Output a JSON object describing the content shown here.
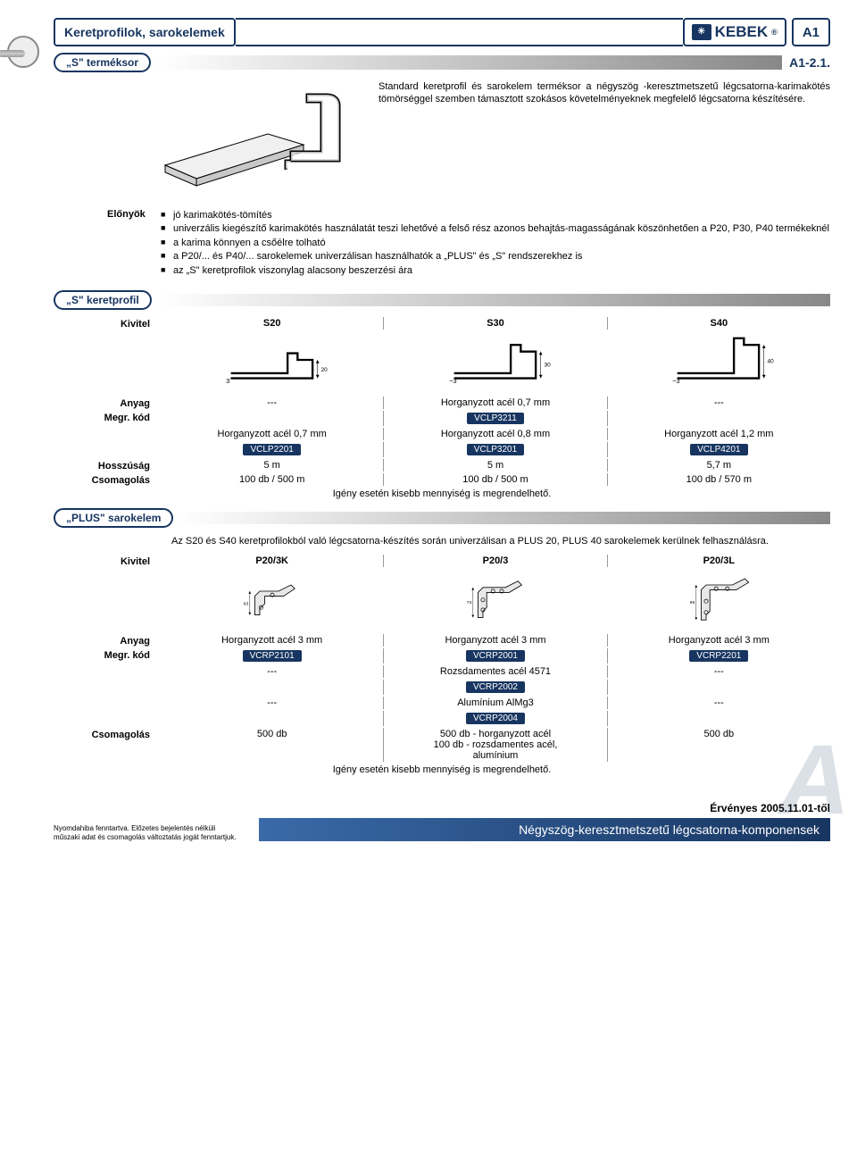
{
  "colors": {
    "brand": "#173560",
    "text": "#000000",
    "badge_bg": "#173560",
    "badge_text": "#ffffff",
    "grad_start": "#ffffff",
    "grad_end": "#888888",
    "footer_grad_start": "#3a6aa8",
    "footer_grad_end": "#173560"
  },
  "header": {
    "title": "Keretprofilok, sarokelemek",
    "logo_mark": "✳",
    "logo_text": "KEBEK",
    "page_code": "A1"
  },
  "sub": {
    "series_label": "„S\" terméksor",
    "series_code": "A1-2.1."
  },
  "intro_text": "Standard keretprofil és sarokelem terméksor a négyszög -keresztmetszetű légcsatorna-karimakötés tömörséggel szemben támasztott szokásos követelményeknek megfelelő légcsatorna készítésére.",
  "advantages": {
    "label": "Előnyök",
    "items": [
      "jó karimakötés-tömítés",
      "univerzális kiegészítő karimakötés használatát teszi lehetővé a felső rész azonos behajtás-magasságának köszönhetően a P20, P30, P40 termékeknél",
      "a karima könnyen a csőélre tolható",
      "a P20/... és P40/... sarokelemek univerzálisan használhatók a „PLUS\" és „S\" rendszerekhez is",
      "az „S\" keretprofilok viszonylag alacsony beszerzési ára"
    ]
  },
  "section_s": {
    "title": "„S\" keretprofil",
    "kivitel_label": "Kivitel",
    "variants": [
      "S20",
      "S30",
      "S40"
    ],
    "dimensions": {
      "h": [
        "20",
        "30",
        "40"
      ],
      "base": [
        "3˝",
        "~3˝",
        "~3˝"
      ]
    },
    "rows": [
      {
        "label": "Anyag",
        "cols": [
          "---",
          "Horganyzott acél 0,7 mm",
          "---"
        ]
      },
      {
        "label": "Megr. kód",
        "cols": [
          "",
          "{badge:VCLP3211}",
          ""
        ]
      },
      {
        "label": "",
        "cols": [
          "Horganyzott acél 0,7 mm",
          "Horganyzott acél 0,8 mm",
          "Horganyzott acél 1,2 mm"
        ]
      },
      {
        "label": "",
        "cols": [
          "{badge:VCLP2201}",
          "{badge:VCLP3201}",
          "{badge:VCLP4201}"
        ]
      },
      {
        "label": "Hosszúság",
        "cols": [
          "5 m",
          "5 m",
          "5,7 m"
        ]
      },
      {
        "label": "Csomagolás",
        "cols": [
          "100 db / 500 m",
          "100 db / 500 m",
          "100 db / 570 m"
        ]
      }
    ],
    "note": "Igény esetén kisebb mennyiség is megrendelhető."
  },
  "section_plus": {
    "title": "„PLUS\" sarokelem",
    "intro": "Az S20 és S40 keretprofilokból való légcsatorna-készítés során univerzálisan a PLUS 20, PLUS 40 sarokelemek kerülnek felhasználásra.",
    "kivitel_label": "Kivitel",
    "variants": [
      "P20/3K",
      "P20/3",
      "P20/3L"
    ],
    "dimensions": {
      "h": [
        "63",
        "73",
        "95"
      ]
    },
    "rows": [
      {
        "label": "Anyag",
        "cols": [
          "Horganyzott acél 3 mm",
          "Horganyzott acél 3 mm",
          "Horganyzott acél 3 mm"
        ]
      },
      {
        "label": "Megr. kód",
        "cols": [
          "{badge:VCRP2101}",
          "{badge:VCRP2001}",
          "{badge:VCRP2201}"
        ]
      },
      {
        "label": "",
        "cols": [
          "---",
          "Rozsdamentes acél 4571",
          "---"
        ]
      },
      {
        "label": "",
        "cols": [
          "",
          "{badge:VCRP2002}",
          ""
        ]
      },
      {
        "label": "",
        "cols": [
          "---",
          "Alumínium AlMg3",
          "---"
        ]
      },
      {
        "label": "",
        "cols": [
          "",
          "{badge:VCRP2004}",
          ""
        ]
      },
      {
        "label": "Csomagolás",
        "cols": [
          "500 db",
          "500 db - horganyzott acél\n100 db - rozsdamentes acél,\nalumínium",
          "500 db"
        ]
      }
    ],
    "note": "Igény esetén kisebb mennyiség is megrendelhető."
  },
  "footer": {
    "valid": "Érvényes 2005.11.01-től",
    "small": "Nyomdahiba fenntartva. Előzetes bejelentés nélküli\nműszaki adat és csomagolás változtatás jogát fenntartjuk.",
    "main": "Négyszög-keresztmetszetű légcsatorna-komponensek",
    "watermark": "A"
  }
}
